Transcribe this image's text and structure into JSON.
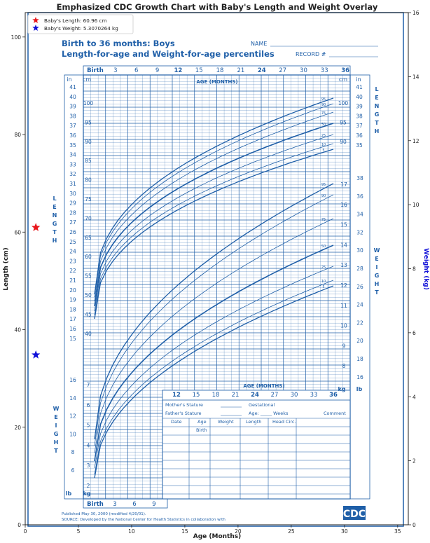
{
  "figure": {
    "title": "Emphasized CDC Growth Chart with Baby's Length and Weight Overlay",
    "xlabel": "Age (Months)",
    "ylabel_left": "Length (cm)",
    "ylabel_right": "Weight (kg)",
    "legend": [
      {
        "marker": "red-star",
        "color": "#e8161b",
        "label": "Baby's Length: 60.96 cm"
      },
      {
        "marker": "blue-star",
        "color": "#1010d8",
        "label": "Baby's Weight: 5.3070264 kg"
      }
    ],
    "legend_position": "top-left"
  },
  "chart_data": {
    "type": "scatter",
    "x": {
      "label": "Age (Months)",
      "lim": [
        0,
        36
      ],
      "ticks": [
        0,
        5,
        10,
        15,
        20,
        25,
        30,
        35
      ]
    },
    "y_left": {
      "label": "Length (cm)",
      "lim": [
        0,
        105
      ],
      "ticks": [
        0,
        20,
        40,
        60,
        80,
        100
      ]
    },
    "y_right": {
      "label": "Weight (kg)",
      "lim": [
        0,
        16
      ],
      "ticks": [
        0,
        2,
        4,
        6,
        8,
        10,
        12,
        14,
        16
      ]
    },
    "series": [
      {
        "name": "Baby's Length: 60.96 cm",
        "axis": "left",
        "color": "#e8161b",
        "marker": "star",
        "points": [
          {
            "x": 1,
            "y": 60.96
          }
        ]
      },
      {
        "name": "Baby's Weight: 5.3070264 kg",
        "axis": "right",
        "color": "#1010d8",
        "marker": "star",
        "points": [
          {
            "x": 1,
            "y": 5.3070264
          }
        ]
      }
    ],
    "grid": false
  },
  "cdc": {
    "title1": "Birth to 36 months: Boys",
    "title2": "Length-for-age and Weight-for-age percentiles",
    "name_label": "NAME",
    "record_label": "RECORD #",
    "age_months": "AGE (MONTHS)",
    "top_ages": [
      "Birth",
      "3",
      "6",
      "9",
      "12",
      "15",
      "18",
      "21",
      "24",
      "27",
      "30",
      "33",
      "36"
    ],
    "bottom_ages": [
      "Birth",
      "3",
      "6",
      "9"
    ],
    "table_ages": [
      "12",
      "15",
      "18",
      "21",
      "24",
      "27",
      "30",
      "33",
      "36"
    ],
    "in_label": "in",
    "cm_label": "cm",
    "kg_label": "kg",
    "lb_label": "lb",
    "length_word": "LENGTH",
    "weight_word": "WEIGHT",
    "inch_ticks_left": [
      "41",
      "40",
      "39",
      "38",
      "37",
      "36",
      "35",
      "34",
      "33",
      "32",
      "31",
      "30",
      "29",
      "28",
      "27",
      "26",
      "25",
      "24",
      "23",
      "22",
      "21",
      "20",
      "19",
      "18",
      "17",
      "16",
      "15"
    ],
    "cm_ticks_left": [
      "100",
      "95",
      "90",
      "85",
      "80",
      "75",
      "70",
      "65",
      "60",
      "55",
      "50",
      "45",
      "40"
    ],
    "inch_ticks_right": [
      "41",
      "40",
      "39",
      "38",
      "37",
      "36",
      "35"
    ],
    "cm_ticks_right": [
      "100",
      "95",
      "90"
    ],
    "kg_ticks_right": [
      "17",
      "16",
      "15",
      "14",
      "13",
      "12",
      "11",
      "10",
      "9",
      "8"
    ],
    "lb_ticks_right": [
      "38",
      "36",
      "34",
      "32",
      "30",
      "28",
      "26",
      "24",
      "22",
      "20",
      "18",
      "16"
    ],
    "kg_ticks_left": [
      "7",
      "6",
      "5",
      "4",
      "3",
      "2"
    ],
    "lb_ticks_left": [
      "16",
      "14",
      "12",
      "10",
      "8",
      "6"
    ],
    "length_pcts": [
      "95",
      "90",
      "75",
      "50",
      "25",
      "10",
      "5"
    ],
    "weight_pcts": [
      "95",
      "90",
      "75",
      "50",
      "25",
      "10",
      "5"
    ],
    "mothers_stature": "Mother's Stature",
    "fathers_stature": "Father's Stature",
    "gestational": "Gestational",
    "age_weeks": "Age: _____ Weeks",
    "comment": "Comment",
    "table_headers": [
      "Date",
      "Age",
      "Weight",
      "Length",
      "Head Circ."
    ],
    "birth_row": "Birth",
    "published": "Published May 30, 2000 (modified 4/20/01).",
    "source": "SOURCE: Developed by the National Center for Health Statistics in collaboration with",
    "logo": "CDC"
  }
}
